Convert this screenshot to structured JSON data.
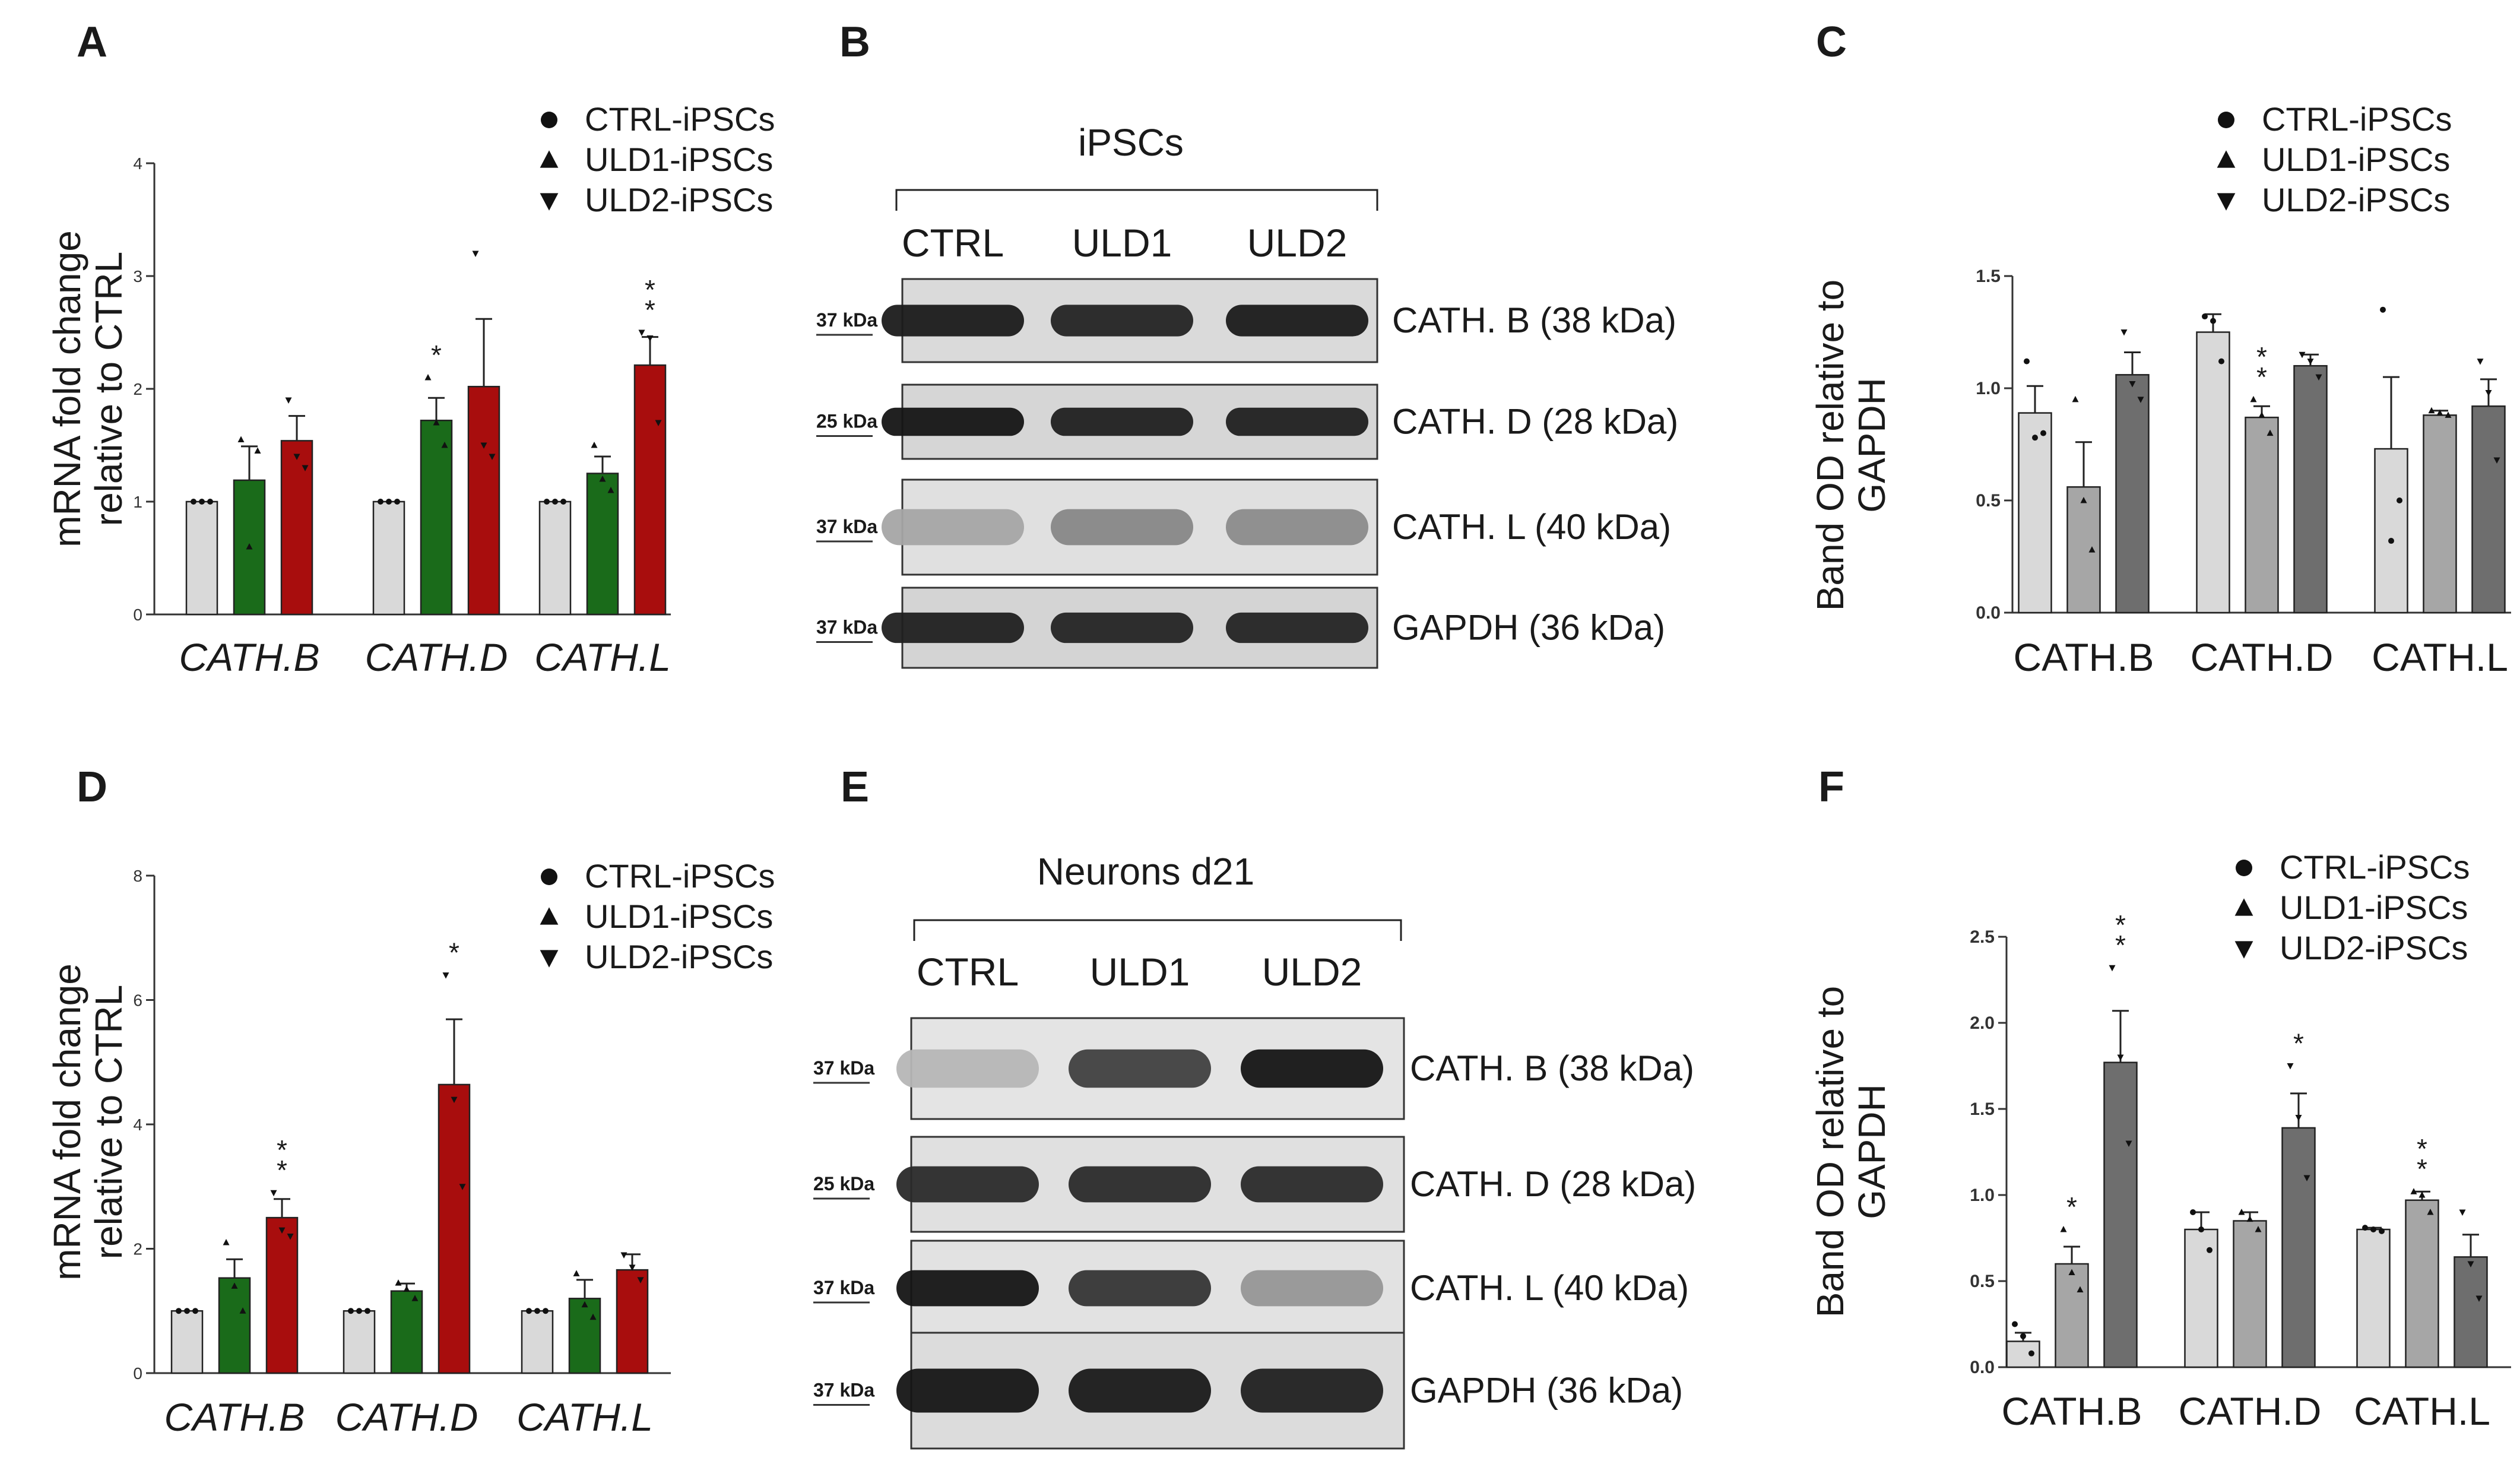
{
  "panels": [
    {
      "letter": "A",
      "chart_data": {
        "type": "bar",
        "ylabel": [
          "mRNA fold change",
          "relative to CTRL"
        ],
        "ylim": [
          0,
          4
        ],
        "yticks": [
          "0",
          "1",
          "2",
          "3",
          "4"
        ],
        "categories": [
          "CATH.B",
          "CATH.D",
          "CATH.L"
        ],
        "categories_italic": true,
        "legend": [
          "CTRL-iPSCs",
          "ULD1-iPSCs",
          "ULD2-iPSCs"
        ],
        "series": [
          {
            "name": "CTRL-iPSCs",
            "color": "#d9d9d9",
            "values": [
              1.0,
              1.0,
              1.0
            ],
            "err": [
              0,
              0,
              0
            ],
            "points": [
              [
                1,
                1,
                1
              ],
              [
                1,
                1,
                1
              ],
              [
                1,
                1,
                1
              ]
            ]
          },
          {
            "name": "ULD1-iPSCs",
            "color": "#1a6b1a",
            "values": [
              1.19,
              1.72,
              1.25
            ],
            "err": [
              0.3,
              0.2,
              0.15
            ],
            "points": [
              [
                1.55,
                0.6,
                1.45
              ],
              [
                2.1,
                1.7,
                1.5
              ],
              [
                1.5,
                1.2,
                1.1
              ]
            ]
          },
          {
            "name": "ULD2-iPSCs",
            "color": "#a80d0d",
            "values": [
              1.54,
              2.02,
              2.21
            ],
            "err": [
              0.22,
              0.6,
              0.25
            ],
            "points": [
              [
                1.9,
                1.4,
                1.3
              ],
              [
                3.2,
                1.5,
                1.4
              ],
              [
                2.5,
                2.45,
                1.7
              ]
            ]
          }
        ],
        "sig": [
          [
            "",
            "",
            ""
          ],
          [
            "",
            "*",
            ""
          ],
          [
            "",
            "",
            "**"
          ]
        ]
      }
    },
    {
      "letter": "B",
      "group": "iPSCs",
      "lanes": [
        "CTRL",
        "ULD1",
        "ULD2"
      ],
      "blots": [
        {
          "kda": "37 kDa",
          "label": "CATH. B (38 kDa)",
          "intensities": [
            0.92,
            0.88,
            0.92
          ],
          "bg": "#dadada"
        },
        {
          "kda": "25 kDa",
          "label": "CATH. D (28 kDa)",
          "intensities": [
            0.95,
            0.9,
            0.9
          ],
          "bg": "#d6d6d6"
        },
        {
          "kda": "37 kDa",
          "label": "CATH. L (40 kDa)",
          "intensities": [
            0.28,
            0.42,
            0.4
          ],
          "bg": "#e0e0e0"
        },
        {
          "kda": "37 kDa",
          "label": "GAPDH (36 kDa)",
          "intensities": [
            0.9,
            0.88,
            0.88
          ],
          "bg": "#d4d4d4"
        }
      ]
    },
    {
      "letter": "C",
      "chart_data": {
        "type": "bar",
        "ylabel": [
          "Band OD relative to",
          "GAPDH"
        ],
        "ylim": [
          0,
          1.5
        ],
        "yticks": [
          "0.0",
          "0.5",
          "1.0",
          "1.5"
        ],
        "categories": [
          "CATH.B",
          "CATH.D",
          "CATH.L"
        ],
        "categories_italic": false,
        "legend": [
          "CTRL-iPSCs",
          "ULD1-iPSCs",
          "ULD2-iPSCs"
        ],
        "series": [
          {
            "name": "CTRL-iPSCs",
            "color": "#d9d9d9",
            "values": [
              0.89,
              1.25,
              0.73
            ],
            "err": [
              0.12,
              0.08,
              0.32
            ],
            "points": [
              [
                1.12,
                0.78,
                0.8
              ],
              [
                1.32,
                1.3,
                1.12
              ],
              [
                1.35,
                0.32,
                0.5
              ]
            ]
          },
          {
            "name": "ULD1-iPSCs",
            "color": "#a6a6a6",
            "values": [
              0.56,
              0.87,
              0.88
            ],
            "err": [
              0.2,
              0.05,
              0.02
            ],
            "points": [
              [
                0.95,
                0.5,
                0.28
              ],
              [
                0.95,
                0.88,
                0.8
              ],
              [
                0.9,
                0.89,
                0.88
              ]
            ]
          },
          {
            "name": "ULD2-iPSCs",
            "color": "#6e6e6e",
            "values": [
              1.06,
              1.1,
              0.92
            ],
            "err": [
              0.1,
              0.05,
              0.12
            ],
            "points": [
              [
                1.25,
                1.02,
                0.95
              ],
              [
                1.15,
                1.12,
                1.05
              ],
              [
                1.12,
                0.98,
                0.68
              ]
            ]
          }
        ],
        "sig": [
          [
            "",
            "",
            ""
          ],
          [
            "",
            "**",
            ""
          ],
          [
            "",
            "",
            ""
          ]
        ]
      }
    },
    {
      "letter": "D",
      "chart_data": {
        "type": "bar",
        "ylabel": [
          "mRNA fold change",
          "relative to CTRL"
        ],
        "ylim": [
          0,
          8
        ],
        "yticks": [
          "0",
          "2",
          "4",
          "6",
          "8"
        ],
        "categories": [
          "CATH.B",
          "CATH.D",
          "CATH.L"
        ],
        "categories_italic": true,
        "legend": [
          "CTRL-iPSCs",
          "ULD1-iPSCs",
          "ULD2-iPSCs"
        ],
        "series": [
          {
            "name": "CTRL-iPSCs",
            "color": "#d9d9d9",
            "values": [
              1.0,
              1.0,
              1.0
            ],
            "err": [
              0,
              0,
              0
            ],
            "points": [
              [
                1,
                1,
                1
              ],
              [
                1,
                1,
                1
              ],
              [
                1,
                1,
                1
              ]
            ]
          },
          {
            "name": "ULD1-iPSCs",
            "color": "#1a6b1a",
            "values": [
              1.53,
              1.32,
              1.2
            ],
            "err": [
              0.3,
              0.12,
              0.3
            ],
            "points": [
              [
                2.1,
                1.4,
                1.0
              ],
              [
                1.45,
                1.35,
                1.2
              ],
              [
                1.6,
                1.1,
                0.9
              ]
            ]
          },
          {
            "name": "ULD2-iPSCs",
            "color": "#a80d0d",
            "values": [
              2.5,
              4.64,
              1.66
            ],
            "err": [
              0.3,
              1.05,
              0.25
            ],
            "points": [
              [
                2.9,
                2.3,
                2.2
              ],
              [
                6.4,
                4.4,
                3.0
              ],
              [
                1.9,
                1.7,
                1.5
              ]
            ]
          }
        ],
        "sig": [
          [
            "",
            "",
            "**"
          ],
          [
            "",
            "",
            "*"
          ],
          [
            "",
            "",
            ""
          ]
        ]
      }
    },
    {
      "letter": "E",
      "group": "Neurons d21",
      "lanes": [
        "CTRL",
        "ULD1",
        "ULD2"
      ],
      "blots": [
        {
          "kda": "37 kDa",
          "label": "CATH. B (38 kDa)",
          "intensities": [
            0.2,
            0.75,
            0.95
          ],
          "bg": "#e4e4e4"
        },
        {
          "kda": "25 kDa",
          "label": "CATH. D (28 kDa)",
          "intensities": [
            0.85,
            0.85,
            0.85
          ],
          "bg": "#e0e0e0"
        },
        {
          "kda": "37 kDa",
          "label": "CATH. L (40 kDa)",
          "intensities": [
            0.95,
            0.8,
            0.35
          ],
          "bg": "#e2e2e2"
        },
        {
          "kda": "37 kDa",
          "label": "GAPDH (36 kDa)",
          "intensities": [
            0.95,
            0.93,
            0.9
          ],
          "bg": "#dcdcdc"
        }
      ]
    },
    {
      "letter": "F",
      "chart_data": {
        "type": "bar",
        "ylabel": [
          "Band OD relative to",
          "GAPDH"
        ],
        "ylim": [
          0,
          2.5
        ],
        "yticks": [
          "0.0",
          "0.5",
          "1.0",
          "1.5",
          "2.0",
          "2.5"
        ],
        "categories": [
          "CATH.B",
          "CATH.D",
          "CATH.L"
        ],
        "categories_italic": false,
        "legend": [
          "CTRL-iPSCs",
          "ULD1-iPSCs",
          "ULD2-iPSCs"
        ],
        "series": [
          {
            "name": "CTRL-iPSCs",
            "color": "#d9d9d9",
            "values": [
              0.15,
              0.8,
              0.8
            ],
            "err": [
              0.05,
              0.1,
              0.01
            ],
            "points": [
              [
                0.25,
                0.18,
                0.08
              ],
              [
                0.9,
                0.8,
                0.68
              ],
              [
                0.81,
                0.8,
                0.79
              ]
            ]
          },
          {
            "name": "ULD1-iPSCs",
            "color": "#a6a6a6",
            "values": [
              0.6,
              0.85,
              0.97
            ],
            "err": [
              0.1,
              0.05,
              0.05
            ],
            "points": [
              [
                0.8,
                0.55,
                0.45
              ],
              [
                0.9,
                0.86,
                0.8
              ],
              [
                1.02,
                1.0,
                0.9
              ]
            ]
          },
          {
            "name": "ULD2-iPSCs",
            "color": "#6e6e6e",
            "values": [
              1.77,
              1.39,
              0.64
            ],
            "err": [
              0.3,
              0.2,
              0.13
            ],
            "points": [
              [
                2.32,
                1.8,
                1.3
              ],
              [
                1.75,
                1.45,
                1.1
              ],
              [
                0.9,
                0.6,
                0.4
              ]
            ]
          }
        ],
        "sig": [
          [
            "",
            "*",
            "**"
          ],
          [
            "",
            "",
            "*"
          ],
          [
            "",
            "**",
            ""
          ]
        ]
      }
    }
  ]
}
